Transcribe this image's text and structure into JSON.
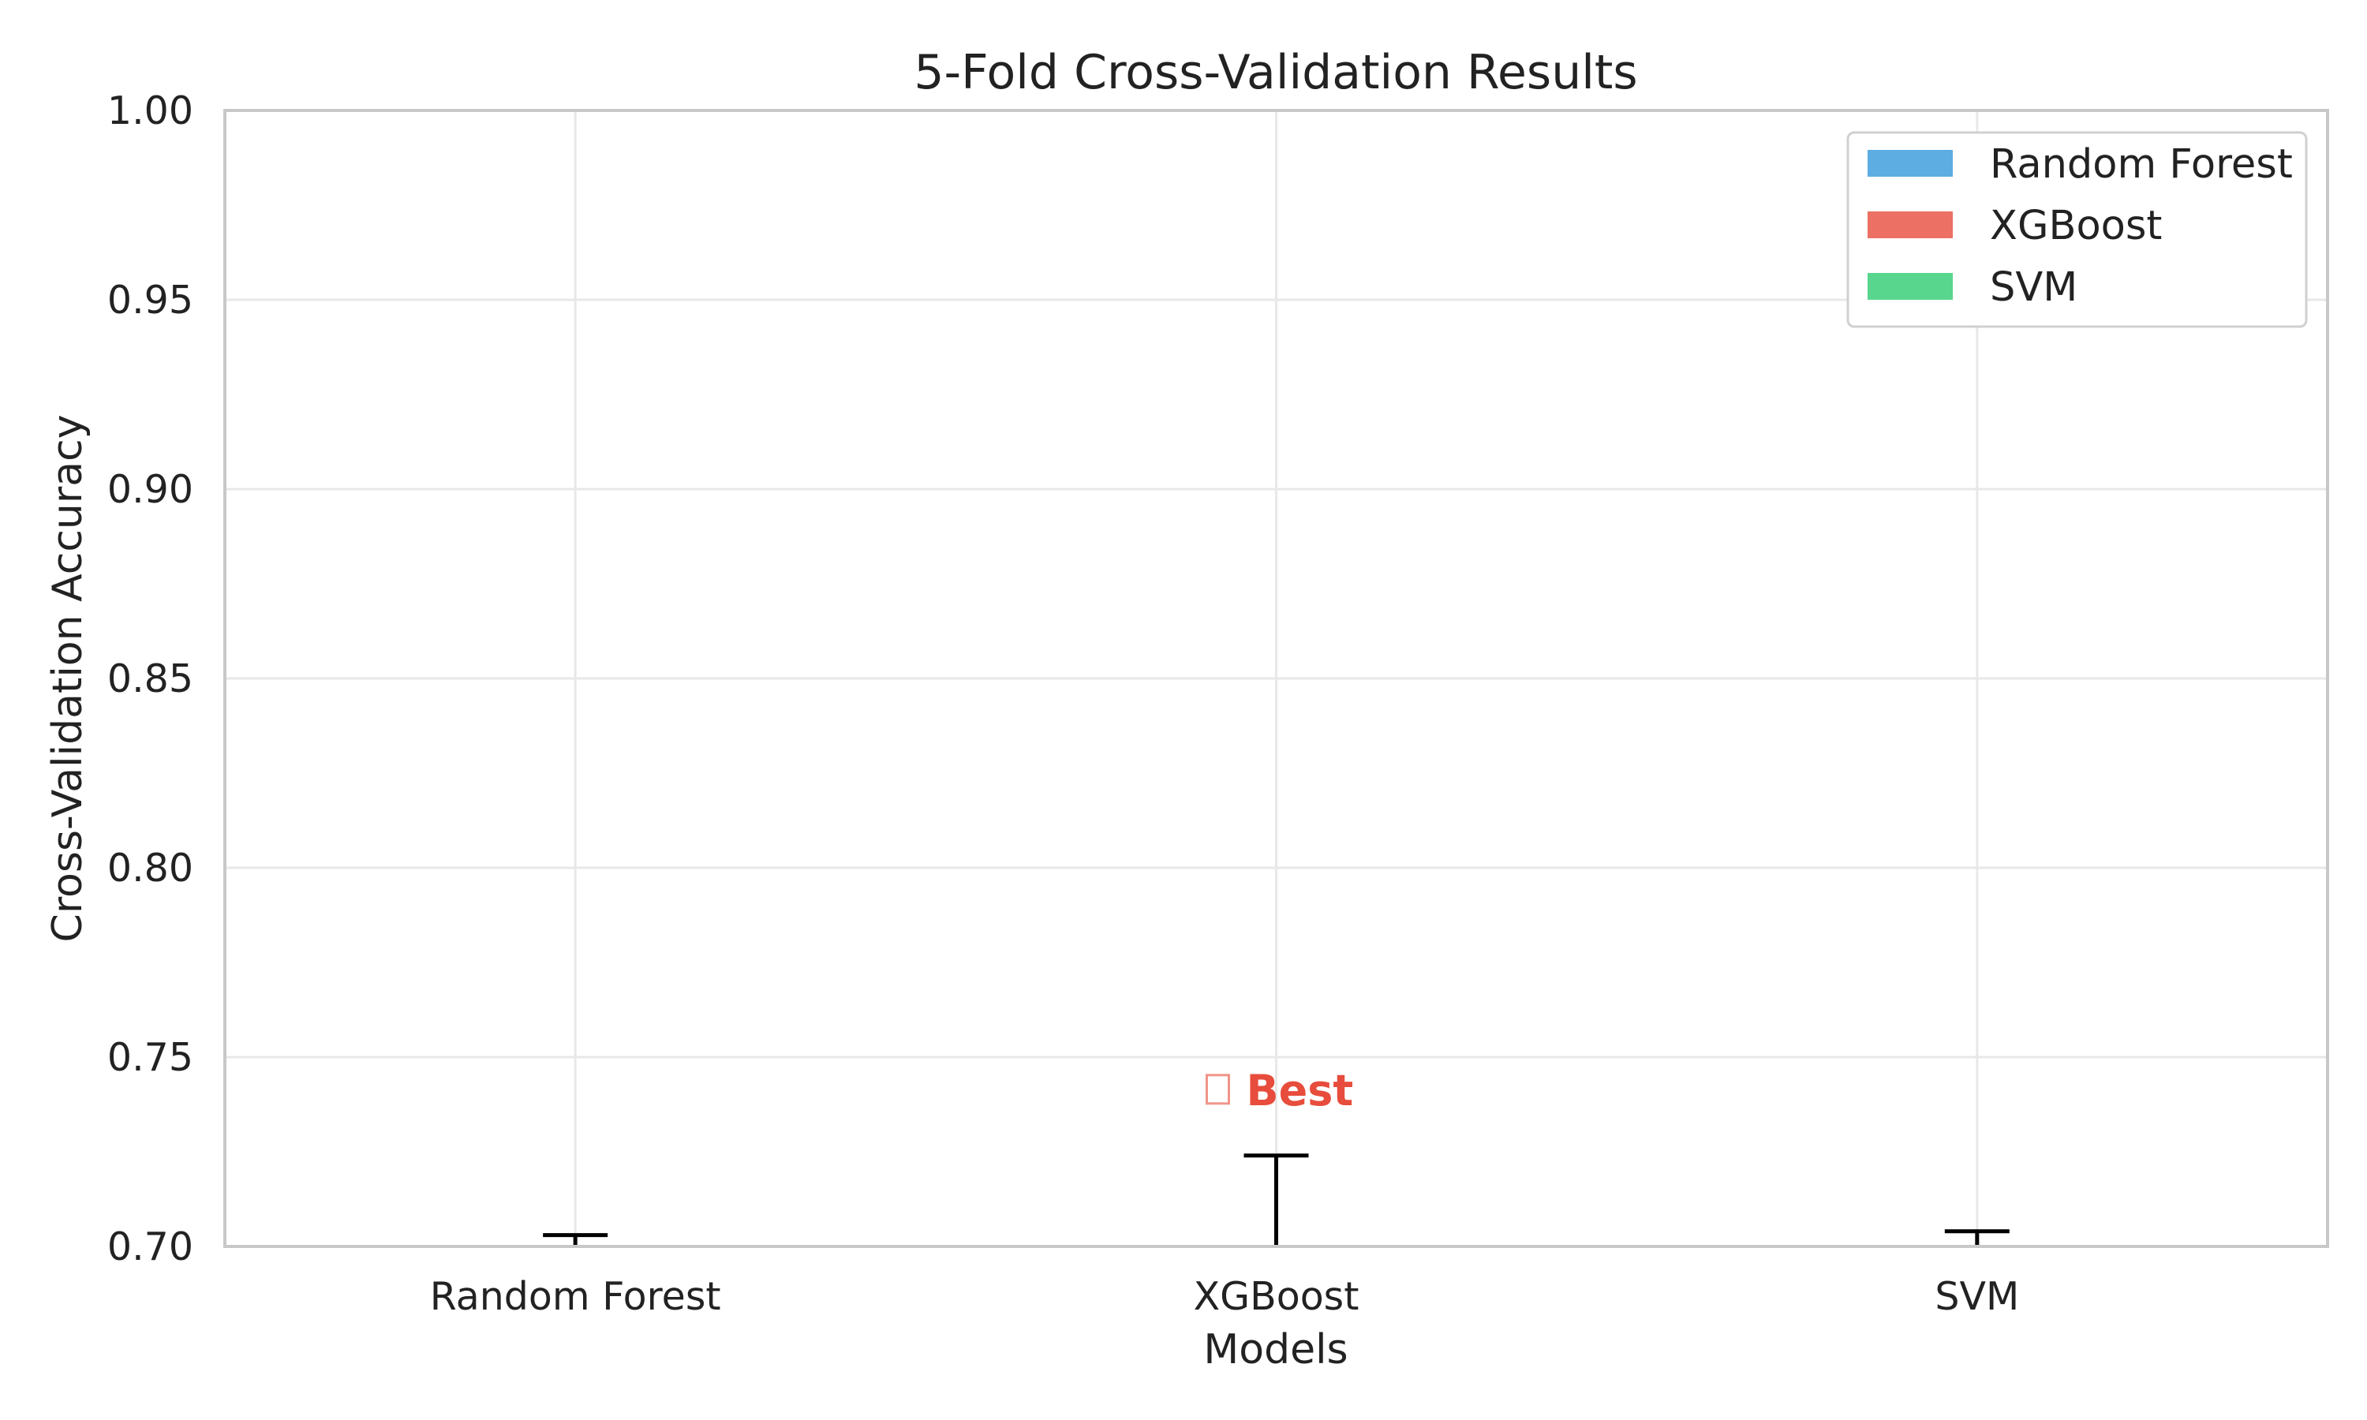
{
  "chart_data": {
    "type": "bar",
    "title": "5-Fold Cross-Validation Results",
    "xlabel": "Models",
    "ylabel": "Cross-Validation Accuracy",
    "categories": [
      "Random Forest",
      "XGBoost",
      "SVM"
    ],
    "values": [
      0.695,
      0.698,
      0.696
    ],
    "errors": [
      0.008,
      0.026,
      0.008
    ],
    "colors": [
      "#5dade2",
      "#ec7063",
      "#58d68d"
    ],
    "ylim": [
      0.7,
      1.0
    ],
    "yticks": [
      "0.70",
      "0.75",
      "0.80",
      "0.85",
      "0.90",
      "0.95",
      "1.00"
    ],
    "ytick_values": [
      0.7,
      0.75,
      0.8,
      0.85,
      0.9,
      0.95,
      1.0
    ],
    "grid": true,
    "legend": {
      "placement": "top-right",
      "entries": [
        "Random Forest",
        "XGBoost",
        "SVM"
      ]
    },
    "annotation": {
      "text": "Best",
      "icon": "trophy-icon",
      "category": "XGBoost",
      "color": "#e74c3c"
    }
  }
}
